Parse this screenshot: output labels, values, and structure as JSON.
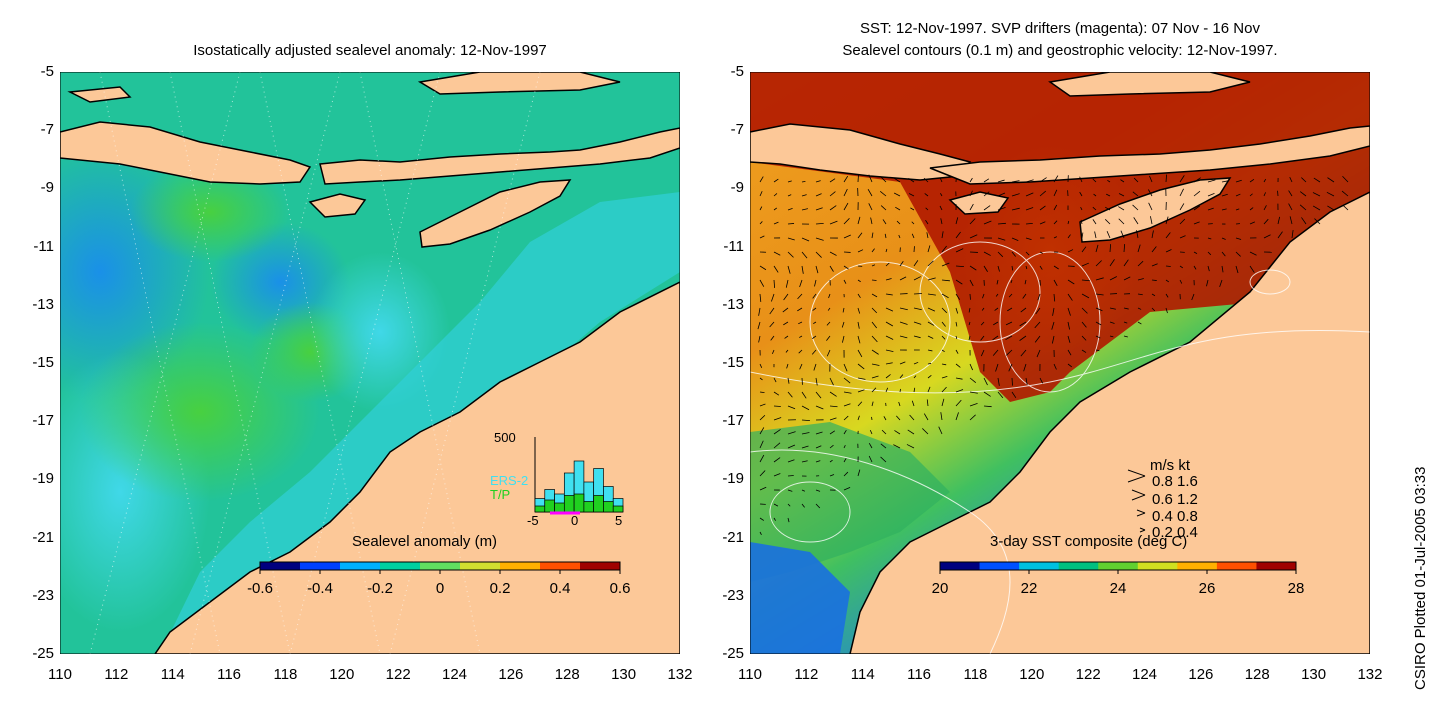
{
  "left_panel": {
    "title": "Isostatically adjusted sealevel anomaly: 12-Nov-1997",
    "colorbar_title": "Sealevel anomaly (m)",
    "colorbar_ticks": [
      "-0.6",
      "-0.4",
      "-0.2",
      "0",
      "0.2",
      "0.4",
      "0.6"
    ],
    "colorbar_colors": [
      "#00007f",
      "#0040ff",
      "#00b0ff",
      "#00d0a0",
      "#60e060",
      "#d0e030",
      "#ffb000",
      "#ff5000",
      "#a00000"
    ],
    "inset": {
      "ymax_label": "500",
      "legend_ers2": "ERS-2",
      "legend_tp": "T/P",
      "ers2_color": "#40e0f0",
      "tp_color": "#20d020",
      "x_labels": [
        "-5",
        "0",
        "5"
      ],
      "ers2_counts": [
        90,
        150,
        120,
        260,
        340,
        200,
        290,
        170,
        90
      ],
      "tp_counts": [
        40,
        80,
        60,
        110,
        120,
        70,
        110,
        70,
        40
      ],
      "ymax": 500
    }
  },
  "right_panel": {
    "title_line1": "SST: 12-Nov-1997. SVP drifters (magenta): 07 Nov - 16 Nov",
    "title_line2": "Sealevel contours (0.1 m) and geostrophic velocity: 12-Nov-1997.",
    "colorbar_title": "3-day SST composite (deg C)",
    "colorbar_ticks": [
      "20",
      "22",
      "24",
      "26",
      "28"
    ],
    "colorbar_colors": [
      "#00007f",
      "#0050ff",
      "#00c0e0",
      "#00c080",
      "#60d030",
      "#d0e020",
      "#ffb000",
      "#ff5000",
      "#a00000"
    ],
    "velocity_legend": {
      "header": "m/s  kt",
      "rows": [
        "0.8  1.6",
        "0.6  1.2",
        "0.4  0.8",
        "0.2  0.4"
      ]
    }
  },
  "axes": {
    "y_ticks": [
      "-5",
      "-7",
      "-9",
      "-11",
      "-13",
      "-15",
      "-17",
      "-19",
      "-21",
      "-23",
      "-25"
    ],
    "x_ticks": [
      "110",
      "112",
      "114",
      "116",
      "118",
      "120",
      "122",
      "124",
      "126",
      "128",
      "130",
      "132"
    ]
  },
  "credit": "CSIRO Plotted 01-Jul-2005 03:33",
  "colors": {
    "land": "#fcc898",
    "ocean_left": "#22c39a",
    "ocean_right_warm": "#a81000"
  }
}
